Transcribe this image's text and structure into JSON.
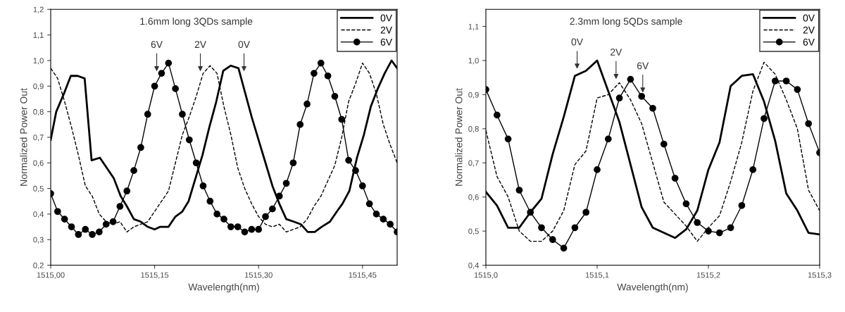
{
  "chart_data": [
    {
      "type": "line",
      "title": "1.6mm long 3QDs sample",
      "xlabel": "Wavelength(nm)",
      "ylabel": "Normalized Power Out",
      "xlim": [
        1515.0,
        1515.5
      ],
      "xticks": [
        {
          "value": 1515.0,
          "label": "1515,00"
        },
        {
          "value": 1515.15,
          "label": "1515,15"
        },
        {
          "value": 1515.3,
          "label": "1515,30"
        },
        {
          "value": 1515.45,
          "label": "1515,45"
        }
      ],
      "ylim": [
        0.2,
        1.2
      ],
      "yticks": [
        {
          "value": 0.2,
          "label": "0,2"
        },
        {
          "value": 0.3,
          "label": "0,3"
        },
        {
          "value": 0.4,
          "label": "0,4"
        },
        {
          "value": 0.5,
          "label": "0,5"
        },
        {
          "value": 0.6,
          "label": "0,6"
        },
        {
          "value": 0.7,
          "label": "0,7"
        },
        {
          "value": 0.8,
          "label": "0,8"
        },
        {
          "value": 0.9,
          "label": "0,9"
        },
        {
          "value": 1.0,
          "label": "1,0"
        },
        {
          "value": 1.1,
          "label": "1,1"
        },
        {
          "value": 1.2,
          "label": "1,2"
        }
      ],
      "grid": false,
      "legend": "top right",
      "series": [
        {
          "name": "0V",
          "color": "#000000",
          "line_style": "solid",
          "marker": "none",
          "x": [
            1515.0,
            1515.008,
            1515.019,
            1515.029,
            1515.039,
            1515.049,
            1515.059,
            1515.071,
            1515.081,
            1515.091,
            1515.101,
            1515.11,
            1515.12,
            1515.13,
            1515.14,
            1515.15,
            1515.158,
            1515.17,
            1515.18,
            1515.19,
            1515.199,
            1515.209,
            1515.219,
            1515.229,
            1515.239,
            1515.249,
            1515.26,
            1515.271,
            1515.28,
            1515.29,
            1515.3,
            1515.31,
            1515.32,
            1515.33,
            1515.34,
            1515.351,
            1515.361,
            1515.371,
            1515.381,
            1515.391,
            1515.403,
            1515.413,
            1515.421,
            1515.431,
            1515.442,
            1515.452,
            1515.462,
            1515.472,
            1515.482,
            1515.492,
            1515.5
          ],
          "values": [
            0.69,
            0.8,
            0.87,
            0.94,
            0.94,
            0.93,
            0.61,
            0.62,
            0.58,
            0.54,
            0.47,
            0.43,
            0.38,
            0.37,
            0.35,
            0.34,
            0.35,
            0.35,
            0.39,
            0.41,
            0.45,
            0.54,
            0.63,
            0.74,
            0.84,
            0.96,
            0.98,
            0.97,
            0.88,
            0.78,
            0.69,
            0.6,
            0.51,
            0.44,
            0.38,
            0.37,
            0.36,
            0.33,
            0.33,
            0.35,
            0.37,
            0.41,
            0.44,
            0.49,
            0.62,
            0.71,
            0.82,
            0.89,
            0.95,
            1.0,
            0.97
          ]
        },
        {
          "name": "2V",
          "color": "#000000",
          "line_style": "dashed",
          "marker": "none",
          "x": [
            1515.0,
            1515.01,
            1515.02,
            1515.03,
            1515.04,
            1515.05,
            1515.06,
            1515.07,
            1515.08,
            1515.09,
            1515.1,
            1515.11,
            1515.12,
            1515.13,
            1515.14,
            1515.15,
            1515.16,
            1515.17,
            1515.18,
            1515.19,
            1515.2,
            1515.21,
            1515.22,
            1515.23,
            1515.24,
            1515.25,
            1515.26,
            1515.27,
            1515.28,
            1515.29,
            1515.3,
            1515.31,
            1515.32,
            1515.33,
            1515.34,
            1515.35,
            1515.36,
            1515.37,
            1515.38,
            1515.39,
            1515.4,
            1515.41,
            1515.42,
            1515.43,
            1515.44,
            1515.45,
            1515.46,
            1515.47,
            1515.48,
            1515.49,
            1515.5
          ],
          "values": [
            0.97,
            0.93,
            0.84,
            0.74,
            0.63,
            0.51,
            0.47,
            0.4,
            0.37,
            0.36,
            0.37,
            0.33,
            0.35,
            0.36,
            0.37,
            0.41,
            0.45,
            0.49,
            0.6,
            0.71,
            0.78,
            0.86,
            0.95,
            0.98,
            0.95,
            0.82,
            0.71,
            0.58,
            0.5,
            0.44,
            0.39,
            0.36,
            0.35,
            0.36,
            0.33,
            0.34,
            0.35,
            0.38,
            0.43,
            0.47,
            0.53,
            0.59,
            0.7,
            0.84,
            0.91,
            0.99,
            0.95,
            0.87,
            0.75,
            0.67,
            0.6
          ]
        },
        {
          "name": "6V",
          "color": "#000000",
          "line_style": "solid",
          "marker": "circle",
          "x": [
            1515.0,
            1515.01,
            1515.02,
            1515.03,
            1515.04,
            1515.05,
            1515.06,
            1515.07,
            1515.08,
            1515.09,
            1515.1,
            1515.11,
            1515.12,
            1515.13,
            1515.14,
            1515.15,
            1515.16,
            1515.17,
            1515.18,
            1515.19,
            1515.2,
            1515.21,
            1515.22,
            1515.23,
            1515.24,
            1515.25,
            1515.26,
            1515.27,
            1515.28,
            1515.29,
            1515.3,
            1515.31,
            1515.32,
            1515.33,
            1515.34,
            1515.35,
            1515.36,
            1515.37,
            1515.38,
            1515.39,
            1515.4,
            1515.41,
            1515.42,
            1515.43,
            1515.44,
            1515.45,
            1515.46,
            1515.47,
            1515.48,
            1515.49,
            1515.5
          ],
          "values": [
            0.48,
            0.41,
            0.38,
            0.35,
            0.32,
            0.34,
            0.32,
            0.33,
            0.36,
            0.37,
            0.43,
            0.49,
            0.57,
            0.66,
            0.79,
            0.9,
            0.95,
            0.99,
            0.89,
            0.79,
            0.69,
            0.6,
            0.51,
            0.45,
            0.4,
            0.38,
            0.35,
            0.35,
            0.33,
            0.34,
            0.34,
            0.39,
            0.42,
            0.47,
            0.52,
            0.6,
            0.75,
            0.83,
            0.95,
            0.99,
            0.94,
            0.86,
            0.77,
            0.61,
            0.57,
            0.51,
            0.44,
            0.4,
            0.38,
            0.36,
            0.33
          ]
        }
      ],
      "annotations": [
        {
          "text": "6V",
          "x": 1515.153,
          "y": 0.95
        },
        {
          "text": "2V",
          "x": 1515.216,
          "y": 0.95
        },
        {
          "text": "0V",
          "x": 1515.279,
          "y": 0.95
        }
      ]
    },
    {
      "type": "line",
      "title": "2.3mm long 5QDs sample",
      "xlabel": "Wavelength(nm)",
      "ylabel": "Normalized Power Out",
      "xlim": [
        1515.0,
        1515.3
      ],
      "xticks": [
        {
          "value": 1515.0,
          "label": "1515,0"
        },
        {
          "value": 1515.1,
          "label": "1515,1"
        },
        {
          "value": 1515.2,
          "label": "1515,2"
        },
        {
          "value": 1515.3,
          "label": "1515,3"
        }
      ],
      "ylim": [
        0.4,
        1.15
      ],
      "yticks": [
        {
          "value": 0.4,
          "label": "0,4"
        },
        {
          "value": 0.5,
          "label": "0,5"
        },
        {
          "value": 0.6,
          "label": "0,6"
        },
        {
          "value": 0.7,
          "label": "0,7"
        },
        {
          "value": 0.8,
          "label": "0,8"
        },
        {
          "value": 0.9,
          "label": "0,9"
        },
        {
          "value": 1.0,
          "label": "1,0"
        },
        {
          "value": 1.1,
          "label": "1,1"
        }
      ],
      "grid": false,
      "legend": "top right",
      "series": [
        {
          "name": "0V",
          "color": "#000000",
          "line_style": "solid",
          "marker": "none",
          "x": [
            1515.0,
            1515.01,
            1515.02,
            1515.03,
            1515.04,
            1515.05,
            1515.06,
            1515.07,
            1515.08,
            1515.09,
            1515.1,
            1515.11,
            1515.12,
            1515.13,
            1515.14,
            1515.15,
            1515.16,
            1515.17,
            1515.18,
            1515.19,
            1515.2,
            1515.21,
            1515.22,
            1515.23,
            1515.24,
            1515.25,
            1515.26,
            1515.27,
            1515.28,
            1515.29,
            1515.3
          ],
          "values": [
            0.615,
            0.575,
            0.51,
            0.51,
            0.555,
            0.595,
            0.725,
            0.835,
            0.955,
            0.97,
            1.0,
            0.91,
            0.82,
            0.695,
            0.57,
            0.51,
            0.495,
            0.48,
            0.505,
            0.56,
            0.68,
            0.76,
            0.925,
            0.955,
            0.96,
            0.88,
            0.765,
            0.61,
            0.56,
            0.495,
            0.49
          ]
        },
        {
          "name": "2V",
          "color": "#000000",
          "line_style": "dashed",
          "marker": "none",
          "x": [
            1515.0,
            1515.01,
            1515.02,
            1515.03,
            1515.04,
            1515.05,
            1515.06,
            1515.07,
            1515.08,
            1515.09,
            1515.1,
            1515.11,
            1515.12,
            1515.13,
            1515.14,
            1515.15,
            1515.16,
            1515.17,
            1515.18,
            1515.19,
            1515.2,
            1515.21,
            1515.22,
            1515.23,
            1515.24,
            1515.25,
            1515.26,
            1515.27,
            1515.28,
            1515.29,
            1515.3
          ],
          "values": [
            0.795,
            0.66,
            0.6,
            0.5,
            0.47,
            0.47,
            0.5,
            0.56,
            0.695,
            0.735,
            0.89,
            0.9,
            0.935,
            0.885,
            0.815,
            0.7,
            0.585,
            0.55,
            0.515,
            0.47,
            0.51,
            0.545,
            0.645,
            0.76,
            0.91,
            0.995,
            0.96,
            0.885,
            0.8,
            0.62,
            0.56
          ]
        },
        {
          "name": "6V",
          "color": "#000000",
          "line_style": "solid",
          "marker": "circle",
          "x": [
            1515.0,
            1515.01,
            1515.02,
            1515.03,
            1515.04,
            1515.05,
            1515.06,
            1515.07,
            1515.08,
            1515.09,
            1515.1,
            1515.11,
            1515.12,
            1515.13,
            1515.14,
            1515.15,
            1515.16,
            1515.17,
            1515.18,
            1515.19,
            1515.2,
            1515.21,
            1515.22,
            1515.23,
            1515.24,
            1515.25,
            1515.26,
            1515.27,
            1515.28,
            1515.29,
            1515.3
          ],
          "values": [
            0.915,
            0.84,
            0.77,
            0.62,
            0.555,
            0.51,
            0.475,
            0.45,
            0.51,
            0.555,
            0.68,
            0.77,
            0.89,
            0.945,
            0.895,
            0.86,
            0.755,
            0.655,
            0.58,
            0.525,
            0.5,
            0.495,
            0.51,
            0.575,
            0.68,
            0.83,
            0.94,
            0.94,
            0.915,
            0.815,
            0.73
          ]
        }
      ],
      "annotations": [
        {
          "text": "0V",
          "x": 1515.082,
          "y": 0.97
        },
        {
          "text": "2V",
          "x": 1515.117,
          "y": 0.94
        },
        {
          "text": "6V",
          "x": 1515.141,
          "y": 0.9
        }
      ]
    }
  ]
}
